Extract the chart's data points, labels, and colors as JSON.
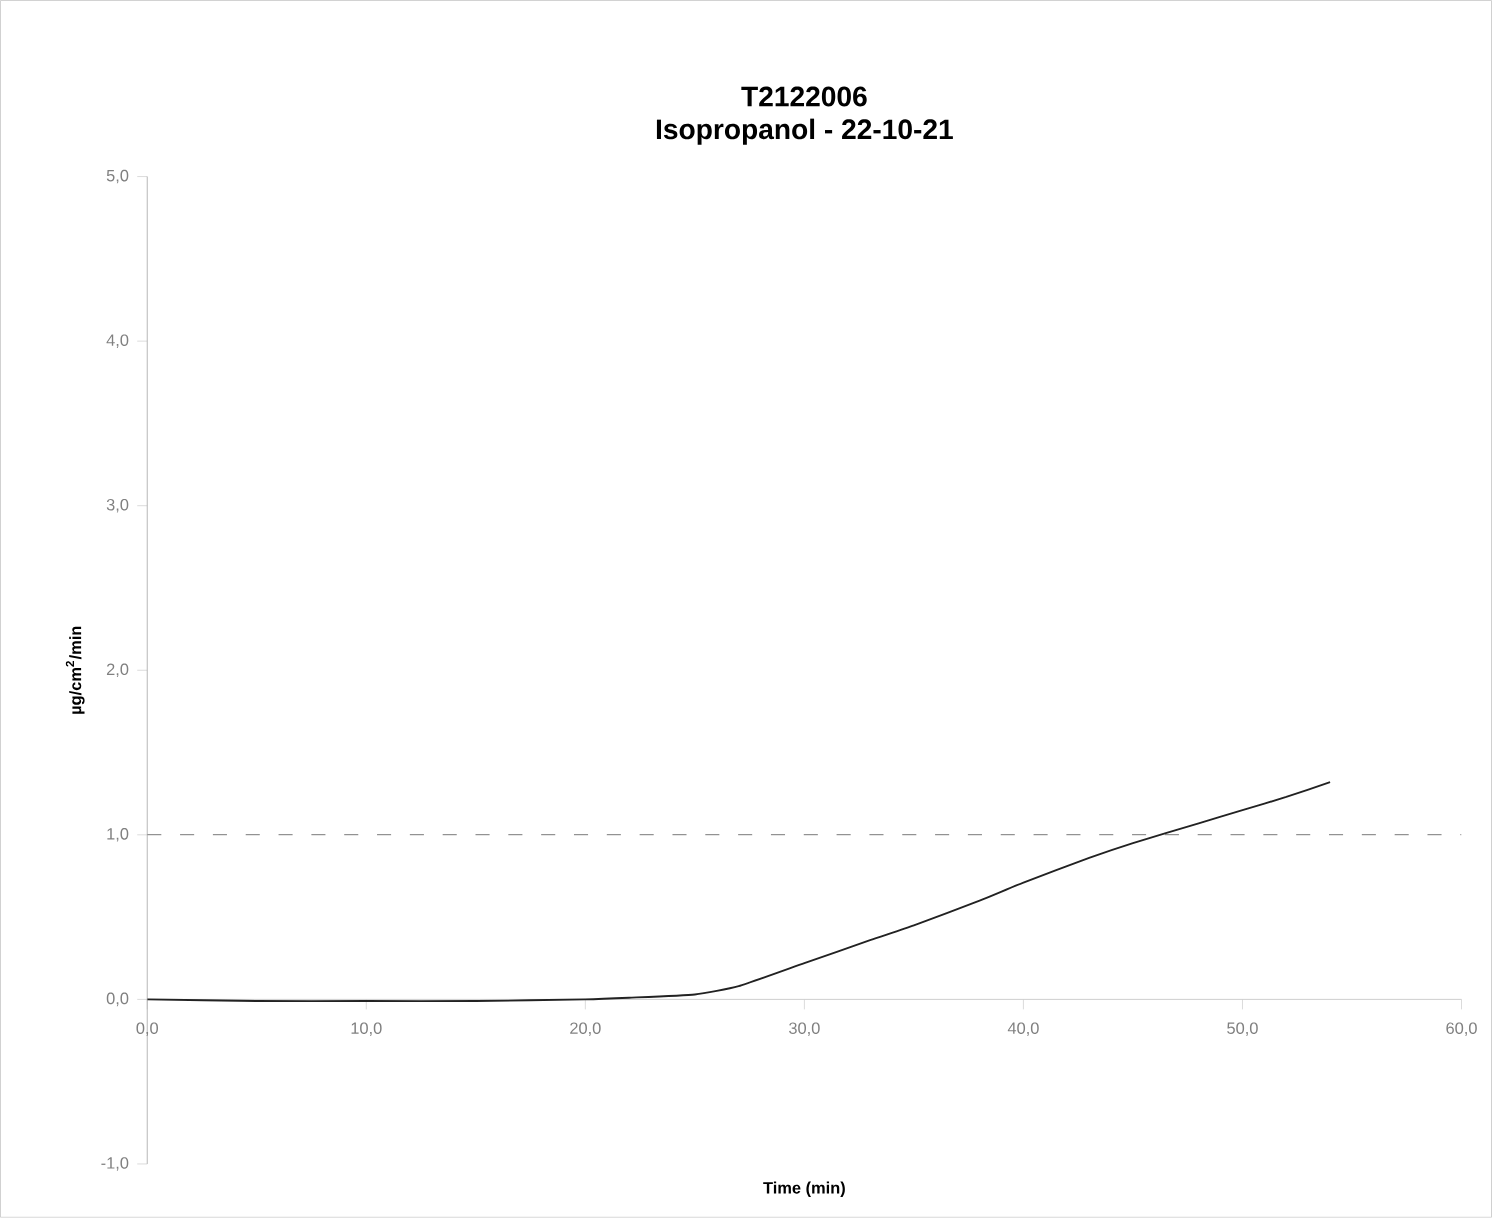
{
  "chart_data": {
    "type": "line",
    "title": "T2122006",
    "subtitle": "Isopropanol - 22-10-21",
    "xlabel": "Time (min)",
    "ylabel": "µg/cm$^{2}$/min",
    "x": [
      0,
      5,
      10,
      15,
      20,
      22,
      25,
      27,
      30,
      33,
      35,
      38,
      40,
      43,
      45,
      48,
      50,
      52,
      54
    ],
    "series": [
      {
        "color": "#222222",
        "values": [
          0,
          -0.01,
          -0.01,
          -0.01,
          0,
          0.01,
          0.03,
          0.08,
          0.22,
          0.36,
          0.45,
          0.6,
          0.71,
          0.86,
          0.95,
          1.07,
          1.15,
          1.23,
          1.32
        ]
      }
    ],
    "xlim": [
      0,
      60
    ],
    "ylim": [
      -1,
      5
    ],
    "xticks": [
      {
        "value": 0,
        "label": "0,0"
      },
      {
        "value": 10,
        "label": "10,0"
      },
      {
        "value": 20,
        "label": "20,0"
      },
      {
        "value": 30,
        "label": "30,0"
      },
      {
        "value": 40,
        "label": "40,0"
      },
      {
        "value": 50,
        "label": "50,0"
      },
      {
        "value": 60,
        "label": "60,0"
      }
    ],
    "yticks": [
      {
        "value": -1,
        "label": "-1,0"
      },
      {
        "value": 0,
        "label": "0,0"
      },
      {
        "value": 1,
        "label": "1,0"
      },
      {
        "value": 2,
        "label": "2,0"
      },
      {
        "value": 3,
        "label": "3,0"
      },
      {
        "value": 4,
        "label": "4,0"
      },
      {
        "value": 5,
        "label": "5,0"
      }
    ],
    "ref_lines": [
      {
        "axis": "y",
        "value": 1,
        "color": "#555555",
        "line_style": "dashed"
      }
    ],
    "grid": false,
    "marker": "none",
    "line_style": "solid"
  }
}
